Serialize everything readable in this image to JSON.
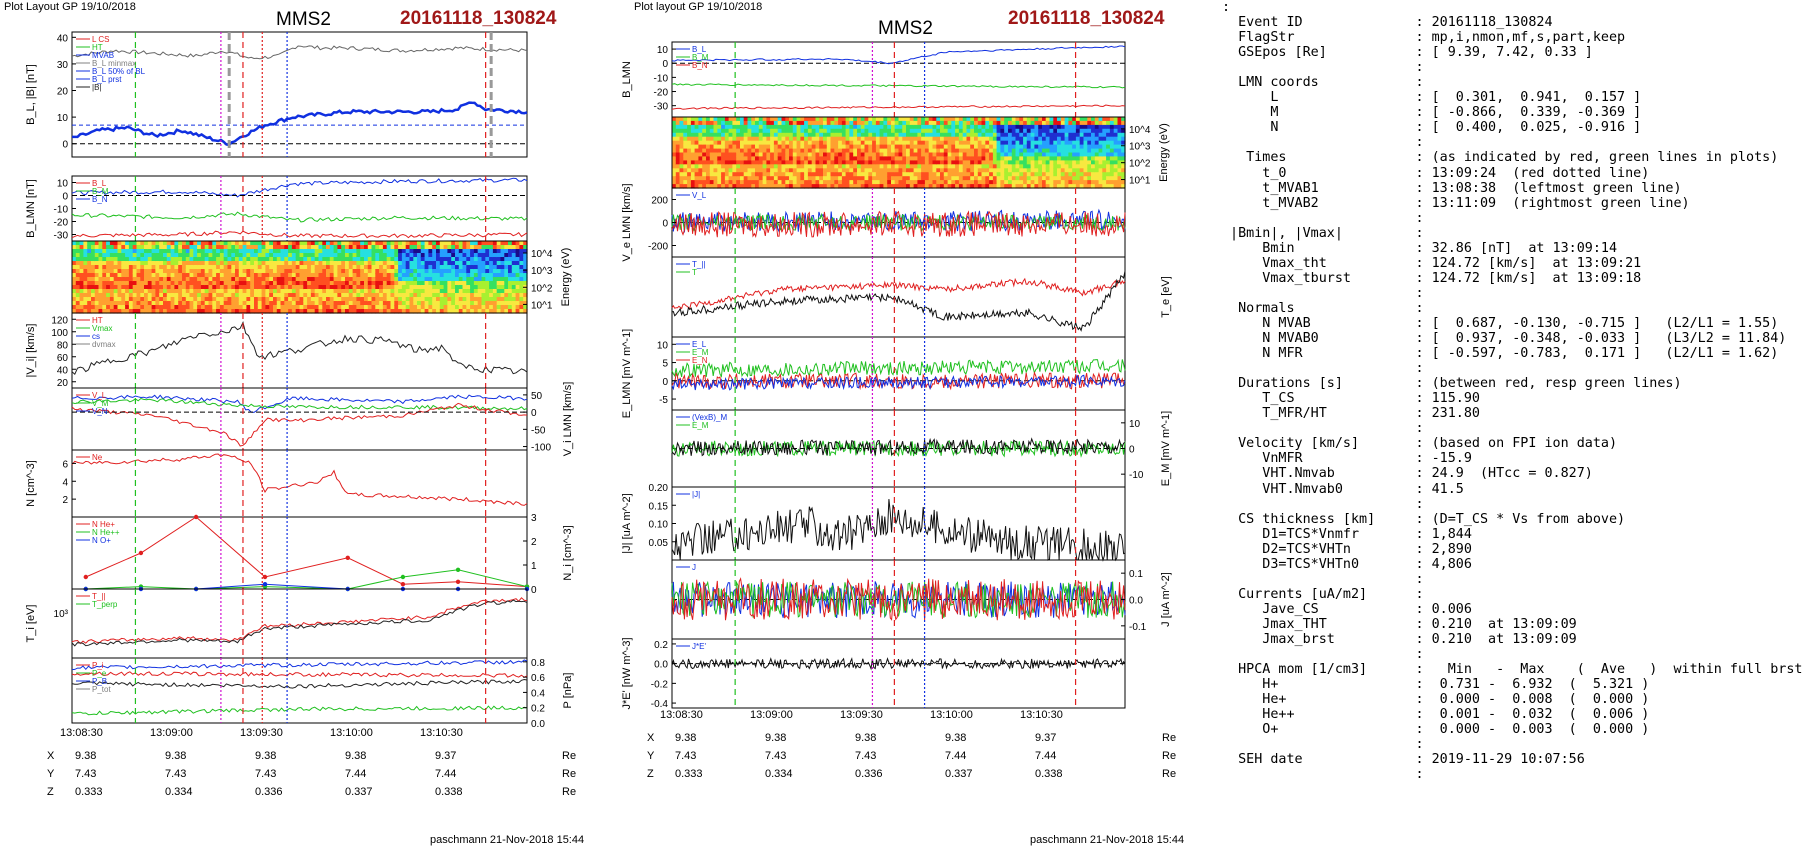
{
  "left_panel": {
    "header": "Plot Layout GP 19/10/2018",
    "title": "MMS2",
    "event": "20161118_130824",
    "footer": "paschmann 21-Nov-2018 15:44",
    "time_ticks": [
      "13:08:30",
      "13:09:00",
      "13:09:30",
      "13:10:00",
      "13:10:30"
    ],
    "positions": {
      "X": [
        "9.38",
        "9.38",
        "9.38",
        "9.38",
        "9.37"
      ],
      "Y": [
        "7.43",
        "7.43",
        "7.43",
        "7.44",
        "7.44"
      ],
      "Z": [
        "0.333",
        "0.334",
        "0.336",
        "0.337",
        "0.338"
      ],
      "unit": "Re"
    }
  },
  "right_panel": {
    "header": "Plot layout GP 19/10/2018",
    "title": "MMS2",
    "event": "20161118_130824",
    "footer": "paschmann 21-Nov-2018 15:44",
    "time_ticks": [
      "13:08:30",
      "13:09:00",
      "13:09:30",
      "13:10:00",
      "13:10:30"
    ],
    "positions": {
      "X": [
        "9.38",
        "9.38",
        "9.38",
        "9.38",
        "9.37"
      ],
      "Y": [
        "7.43",
        "7.43",
        "7.43",
        "7.44",
        "7.44"
      ],
      "Z": [
        "0.333",
        "0.334",
        "0.336",
        "0.337",
        "0.338"
      ],
      "unit": "Re"
    }
  },
  "info_lines": [
    ":",
    "  Event ID              : 20161118_130824",
    "  FlagStr               : mp,i,nmon,mf,s,part,keep",
    "  GSEpos [Re]           : [ 9.39, 7.42, 0.33 ]",
    "                        :",
    "  LMN coords            :",
    "      L                 : [  0.301,  0.941,  0.157 ]",
    "      M                 : [ -0.866,  0.339, -0.369 ]",
    "      N                 : [  0.400,  0.025, -0.916 ]",
    "                        :",
    "   Times                : (as indicated by red, green lines in plots)",
    "     t_0                : 13:09:24  (red dotted line)",
    "     t_MVAB1            : 13:08:38  (leftmost green line)",
    "     t_MVAB2            : 13:11:09  (rightmost green line)",
    "                        :",
    " |Bmin|, |Vmax|         :",
    "     Bmin               : 32.86 [nT]  at 13:09:14",
    "     Vmax_tht           : 124.72 [km/s]  at 13:09:21",
    "     Vmax_tburst        : 124.72 [km/s]  at 13:09:18",
    "                        :",
    "  Normals               :",
    "     N MVAB             : [  0.687, -0.130, -0.715 ]   (L2/L1 = 1.55)",
    "     N MVAB0            : [  0.937, -0.348, -0.033 ]   (L3/L2 = 11.84)",
    "     N MFR              : [ -0.597, -0.783,  0.171 ]   (L2/L1 = 1.62)",
    "                        :",
    "  Durations [s]         : (between red, resp green lines)",
    "     T_CS               : 115.90",
    "     T_MFR/HT           : 231.80",
    "                        :",
    "  Velocity [km/s]       : (based on FPI ion data)",
    "     VnMFR              : -15.9",
    "     VHT.Nmvab          : 24.9  (HTcc = 0.827)",
    "     VHT.Nmvab0         : 41.5",
    "                        :",
    "  CS thickness [km]     : (D=T_CS * Vs from above)",
    "     D1=TCS*Vnmfr       : 1,844",
    "     D2=TCS*VHTn        : 2,890",
    "     D3=TCS*VHTn0       : 4,806",
    "                        :",
    "  Currents [uA/m2]      :",
    "     Jave_CS            : 0.006",
    "     Jmax_THT           : 0.210  at 13:09:09",
    "     Jmax_brst          : 0.210  at 13:09:09",
    "                        :",
    "  HPCA mom [1/cm3]      :   Min   -  Max    (  Ave   )  within full brst int",
    "     H+                 :  0.731 -  6.932  (  5.321 )",
    "     He+                :  0.000 -  0.008  (  0.000 )",
    "     He++               :  0.001 -  0.032  (  0.006 )",
    "     O+                 :  0.000 -  0.003  (  0.000 )",
    "                        :",
    "  SEH date              : 2019-11-29 10:07:56",
    "                        :"
  ],
  "chart_data": [
    {
      "type": "line",
      "figure": "left",
      "time_range": [
        "13:08:15",
        "13:11:00"
      ],
      "markers": {
        "red_dotted": "13:09:24",
        "green_dashed": [
          "13:08:38",
          "13:11:09"
        ]
      },
      "panels": [
        {
          "ylabel": "B_L, |B| [nT]",
          "ylim": [
            -5,
            42
          ],
          "ticks": [
            "0",
            "10",
            "20",
            "30",
            "40"
          ],
          "legend": [
            "L CS",
            "HT",
            "MVAB",
            "B_L minmax",
            "B_L 50% of BL",
            "B_L prst",
            "|B|"
          ],
          "series": [
            {
              "name": "|B|",
              "color": "#666666",
              "x": [
                0,
                15,
                30,
                45,
                55,
                65,
                75,
                82,
                90,
                100,
                120,
                140,
                165
              ],
              "values": [
                33,
                35,
                34,
                33,
                35,
                32,
                33,
                37,
                36,
                36,
                35,
                36,
                35
              ]
            },
            {
              "name": "B_L",
              "color": "#1030e0",
              "x": [
                0,
                10,
                20,
                30,
                40,
                50,
                57,
                62,
                70,
                80,
                90,
                100,
                110,
                120,
                130,
                140,
                145,
                150,
                165
              ],
              "values": [
                2,
                5,
                6,
                3,
                5,
                2,
                0,
                3,
                7,
                10,
                11,
                12,
                12,
                12,
                12,
                13,
                16,
                13,
                12
              ]
            }
          ]
        },
        {
          "ylabel": "B_LMN [nT]",
          "ylim": [
            -35,
            15
          ],
          "ticks": [
            "10",
            "0",
            "-10",
            "-20",
            "-30"
          ],
          "legend": [
            "B_L",
            "B_M",
            "B_N"
          ],
          "series": [
            {
              "name": "B_L",
              "color": "#1030e0",
              "x": [
                0,
                40,
                60,
                80,
                120,
                165
              ],
              "values": [
                2,
                3,
                0,
                9,
                11,
                12
              ]
            },
            {
              "name": "B_M",
              "color": "#20c020",
              "x": [
                0,
                40,
                60,
                80,
                120,
                165
              ],
              "values": [
                -15,
                -17,
                -14,
                -19,
                -17,
                -18
              ]
            },
            {
              "name": "B_N",
              "color": "#e02020",
              "x": [
                0,
                40,
                60,
                80,
                120,
                165
              ],
              "values": [
                -31,
                -30,
                -28,
                -31,
                -31,
                -30
              ]
            }
          ]
        },
        {
          "type": "heatmap",
          "ylabel": "Energy (eV)",
          "ticks": [
            "10^4",
            "10^3",
            "10^2",
            "10^1"
          ]
        },
        {
          "ylabel": "|V_i| [km/s]",
          "ylim": [
            10,
            130
          ],
          "ticks": [
            "120",
            "100",
            "80",
            "60",
            "40",
            "20"
          ],
          "legend": [
            "HT",
            "Vmax",
            "cs",
            "dvmax"
          ],
          "series": [
            {
              "name": "|V_i|",
              "color": "#222222",
              "x": [
                0,
                15,
                30,
                45,
                55,
                62,
                68,
                80,
                100,
                115,
                125,
                135,
                140,
                150,
                165
              ],
              "values": [
                35,
                55,
                70,
                95,
                100,
                110,
                60,
                70,
                90,
                85,
                70,
                75,
                45,
                40,
                35
              ]
            }
          ]
        },
        {
          "ylabel": "V_i LMN [km/s]",
          "ylim": [
            -110,
            70
          ],
          "ticks": [
            "50",
            "0",
            "-50",
            "-100"
          ],
          "legend": [
            "V_L",
            "V_M",
            "V_N"
          ],
          "series": [
            {
              "name": "V_L",
              "color": "#1030e0",
              "x": [
                0,
                30,
                60,
                65,
                80,
                120,
                140,
                165
              ],
              "values": [
                40,
                45,
                30,
                0,
                40,
                30,
                45,
                40
              ]
            },
            {
              "name": "V_M",
              "color": "#20c020",
              "x": [
                0,
                30,
                60,
                80,
                120,
                165
              ],
              "values": [
                30,
                35,
                20,
                15,
                15,
                10
              ]
            },
            {
              "name": "V_N",
              "color": "#e02020",
              "x": [
                0,
                30,
                55,
                62,
                70,
                80,
                90,
                120,
                140,
                165
              ],
              "values": [
                10,
                -10,
                -60,
                -100,
                -20,
                -25,
                -20,
                -10,
                20,
                -10
              ]
            }
          ]
        },
        {
          "ylabel": "N [cm^-3]",
          "ylim": [
            0,
            7.5
          ],
          "ticks": [
            "6",
            "4",
            "2"
          ],
          "legend": [
            "Ne"
          ],
          "series": [
            {
              "name": "Ne",
              "color": "#e02020",
              "x": [
                0,
                20,
                40,
                55,
                65,
                70,
                90,
                95,
                100,
                120,
                140,
                165
              ],
              "values": [
                6,
                6.2,
                6.5,
                7,
                6,
                3,
                4,
                5,
                2.5,
                2.3,
                2,
                1.5
              ]
            }
          ]
        },
        {
          "ylabel": "N_i [cm^-3]",
          "ylim": [
            0,
            3
          ],
          "ticks": [
            "3",
            "2",
            "1",
            "0"
          ],
          "legend": [
            "N He+",
            "N He++",
            "N O+"
          ],
          "series": [
            {
              "name": "N He++",
              "color": "#e02020",
              "x": [
                5,
                25,
                45,
                70,
                100,
                120,
                140,
                165
              ],
              "values": [
                0.5,
                1.5,
                3,
                0.5,
                1.3,
                0.2,
                0.3,
                0.1
              ]
            },
            {
              "name": "N He+",
              "color": "#20c020",
              "x": [
                5,
                25,
                45,
                70,
                100,
                120,
                140,
                165
              ],
              "values": [
                0,
                0.1,
                0,
                0.1,
                0,
                0.5,
                0.8,
                0.1
              ]
            },
            {
              "name": "N O+",
              "color": "#1030e0",
              "x": [
                5,
                25,
                45,
                70,
                100,
                120,
                140,
                165
              ],
              "values": [
                0,
                0,
                0,
                0.2,
                0,
                0,
                0,
                0
              ]
            }
          ]
        },
        {
          "ylabel": "T_i [eV]",
          "ticks": [
            "10^3"
          ],
          "legend": [
            "T_||",
            "T_perp"
          ],
          "series": [
            {
              "name": "T_||",
              "color": "#e02020",
              "x": [
                0,
                40,
                60,
                70,
                100,
                130,
                150,
                165
              ],
              "values": [
                500,
                600,
                550,
                1000,
                1200,
                1500,
                3000,
                3200
              ]
            },
            {
              "name": "T_perp",
              "color": "#222222",
              "x": [
                0,
                40,
                60,
                70,
                100,
                130,
                150,
                165
              ],
              "values": [
                450,
                550,
                500,
                900,
                1100,
                1300,
                2700,
                3000
              ]
            }
          ]
        },
        {
          "ylabel": "P [nPa]",
          "ylim": [
            0,
            0.85
          ],
          "ticks": [
            "0.8",
            "0.6",
            "0.4",
            "0.2",
            "0.0"
          ],
          "legend": [
            "P_i",
            "P_e",
            "P_B",
            "P_tot"
          ],
          "series": [
            {
              "name": "P_tot",
              "color": "#1030e0",
              "x": [
                0,
                165
              ],
              "values": [
                0.72,
                0.8
              ]
            },
            {
              "name": "P_B",
              "color": "#222222",
              "x": [
                0,
                80,
                165
              ],
              "values": [
                0.52,
                0.48,
                0.55
              ]
            },
            {
              "name": "P_i",
              "color": "#e02020",
              "x": [
                0,
                165
              ],
              "values": [
                0.65,
                0.62
              ]
            },
            {
              "name": "P_e",
              "color": "#20c020",
              "x": [
                0,
                80,
                165
              ],
              "values": [
                0.12,
                0.18,
                0.2
              ]
            }
          ]
        }
      ]
    },
    {
      "type": "line",
      "figure": "right",
      "time_range": [
        "13:08:15",
        "13:11:00"
      ],
      "panels": [
        {
          "ylabel": "B_LMN",
          "ylim": [
            -38,
            15
          ],
          "ticks": [
            "10",
            "0",
            "-10",
            "-20",
            "-30"
          ],
          "legend": [
            "B_L",
            "B_M",
            "B_N"
          ]
        },
        {
          "type": "heatmap",
          "ylabel": "Energy (eV)",
          "ticks": [
            "10^4",
            "10^3",
            "10^2",
            "10^1"
          ]
        },
        {
          "ylabel": "V_e LMN [km/s]",
          "ylim": [
            -300,
            300
          ],
          "ticks": [
            "200",
            "0",
            "-200"
          ],
          "legend": [
            "V_L"
          ]
        },
        {
          "ylabel": "T_e [eV]",
          "legend": [
            "T_||",
            "T"
          ]
        },
        {
          "ylabel": "E_LMN [mV m^-1]",
          "ylim": [
            -8,
            12
          ],
          "ticks": [
            "10",
            "5",
            "0",
            "-5"
          ],
          "legend": [
            "E_L",
            "E_M",
            "E_N"
          ]
        },
        {
          "ylabel": "E_M [mV m^-1]",
          "ylim": [
            -15,
            15
          ],
          "ticks": [
            "10",
            "0",
            "-10"
          ],
          "legend": [
            "(VexB)_M",
            "E_M"
          ]
        },
        {
          "ylabel": "|J| [uA m^-2]",
          "ylim": [
            0,
            0.2
          ],
          "ticks": [
            "0.20",
            "0.15",
            "0.10",
            "0.05"
          ],
          "legend": [
            "|J|"
          ]
        },
        {
          "ylabel": "J [uA m^-2]",
          "ylim": [
            -0.15,
            0.15
          ],
          "ticks": [
            "0.1",
            "0.0",
            "-0.1"
          ],
          "legend": [
            "J"
          ]
        },
        {
          "ylabel": "J*E' [nW m^-3]",
          "ylim": [
            -0.45,
            0.25
          ],
          "ticks": [
            "0.2",
            "0.0",
            "-0.2",
            "-0.4"
          ],
          "legend": [
            "J*E'"
          ]
        }
      ]
    }
  ]
}
